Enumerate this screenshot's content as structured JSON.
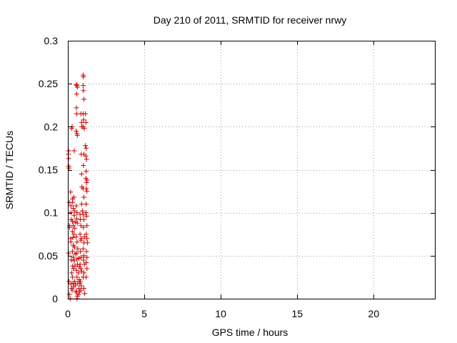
{
  "chart_data": {
    "type": "scatter",
    "title": "Day 210 of 2011, SRMTID for receiver nrwy",
    "xlabel": "GPS time / hours",
    "ylabel": "SRMTID / TECUs",
    "xlim": [
      0,
      24
    ],
    "ylim": [
      0,
      0.3
    ],
    "xticks": [
      0,
      5,
      10,
      15,
      20
    ],
    "xtick_labels": [
      "0",
      "5",
      "10",
      "15",
      "20"
    ],
    "yticks": [
      0,
      0.05,
      0.1,
      0.15,
      0.2,
      0.25,
      0.3
    ],
    "ytick_labels": [
      "0",
      "0.05",
      "0.1",
      "0.15",
      "0.2",
      "0.25",
      "0.3"
    ],
    "grid": true,
    "marker": "plus",
    "color": "#cc0000",
    "series": [
      {
        "name": "SRMTID",
        "points": [
          [
            0.03,
            0.168
          ],
          [
            0.05,
            0.172
          ],
          [
            0.05,
            0.163
          ],
          [
            0.06,
            0.154
          ],
          [
            0.08,
            0.152
          ],
          [
            0.1,
            0.112
          ],
          [
            0.1,
            0.085
          ],
          [
            0.12,
            0.083
          ],
          [
            0.05,
            0.053
          ],
          [
            0.08,
            0.02
          ],
          [
            0.1,
            0.005
          ],
          [
            0.15,
            0.0
          ],
          [
            0.18,
            0.124
          ],
          [
            0.2,
            0.108
          ],
          [
            0.2,
            0.1
          ],
          [
            0.22,
            0.092
          ],
          [
            0.18,
            0.07
          ],
          [
            0.2,
            0.066
          ],
          [
            0.22,
            0.045
          ],
          [
            0.25,
            0.03
          ],
          [
            0.2,
            0.017
          ],
          [
            0.25,
            0.012
          ],
          [
            0.28,
            0.01
          ],
          [
            0.25,
            0.198
          ],
          [
            0.28,
            0.2
          ],
          [
            0.3,
            0.116
          ],
          [
            0.32,
            0.112
          ],
          [
            0.35,
            0.105
          ],
          [
            0.3,
            0.09
          ],
          [
            0.35,
            0.085
          ],
          [
            0.3,
            0.078
          ],
          [
            0.33,
            0.071
          ],
          [
            0.35,
            0.062
          ],
          [
            0.3,
            0.055
          ],
          [
            0.35,
            0.048
          ],
          [
            0.32,
            0.038
          ],
          [
            0.36,
            0.035
          ],
          [
            0.3,
            0.025
          ],
          [
            0.35,
            0.018
          ],
          [
            0.38,
            0.014
          ],
          [
            0.42,
            0.172
          ],
          [
            0.4,
            0.118
          ],
          [
            0.45,
            0.102
          ],
          [
            0.42,
            0.097
          ],
          [
            0.48,
            0.089
          ],
          [
            0.45,
            0.082
          ],
          [
            0.4,
            0.075
          ],
          [
            0.44,
            0.06
          ],
          [
            0.48,
            0.052
          ],
          [
            0.42,
            0.044
          ],
          [
            0.46,
            0.038
          ],
          [
            0.45,
            0.02
          ],
          [
            0.5,
            0.016
          ],
          [
            0.52,
            0.008
          ],
          [
            0.55,
            0.249
          ],
          [
            0.6,
            0.248
          ],
          [
            0.62,
            0.246
          ],
          [
            0.58,
            0.238
          ],
          [
            0.56,
            0.222
          ],
          [
            0.58,
            0.215
          ],
          [
            0.55,
            0.195
          ],
          [
            0.6,
            0.192
          ],
          [
            0.62,
            0.19
          ],
          [
            0.55,
            0.108
          ],
          [
            0.6,
            0.1
          ],
          [
            0.58,
            0.093
          ],
          [
            0.62,
            0.088
          ],
          [
            0.55,
            0.072
          ],
          [
            0.6,
            0.066
          ],
          [
            0.65,
            0.058
          ],
          [
            0.58,
            0.053
          ],
          [
            0.6,
            0.046
          ],
          [
            0.63,
            0.04
          ],
          [
            0.56,
            0.033
          ],
          [
            0.6,
            0.025
          ],
          [
            0.65,
            0.018
          ],
          [
            0.58,
            0.008
          ],
          [
            0.62,
            0.003
          ],
          [
            0.6,
            0.0
          ],
          [
            0.7,
            0.005
          ],
          [
            0.72,
            0.047
          ],
          [
            0.75,
            0.037
          ],
          [
            0.7,
            0.03
          ],
          [
            0.75,
            0.022
          ],
          [
            0.78,
            0.018
          ],
          [
            0.72,
            0.012
          ],
          [
            0.76,
            0.008
          ],
          [
            0.8,
            0.098
          ],
          [
            0.82,
            0.092
          ],
          [
            0.85,
            0.085
          ],
          [
            0.8,
            0.075
          ],
          [
            0.85,
            0.068
          ],
          [
            0.88,
            0.07
          ],
          [
            0.82,
            0.055
          ],
          [
            0.86,
            0.048
          ],
          [
            0.8,
            0.04
          ],
          [
            0.85,
            0.035
          ],
          [
            0.9,
            0.032
          ],
          [
            0.82,
            0.02
          ],
          [
            0.88,
            0.015
          ],
          [
            0.85,
            0.01
          ],
          [
            0.85,
            0.215
          ],
          [
            0.9,
            0.205
          ],
          [
            0.92,
            0.2
          ],
          [
            0.88,
            0.168
          ],
          [
            0.9,
            0.145
          ],
          [
            0.92,
            0.13
          ],
          [
            0.9,
            0.11
          ],
          [
            0.95,
            0.102
          ],
          [
            1.0,
            0.26
          ],
          [
            1.02,
            0.258
          ],
          [
            1.0,
            0.248
          ],
          [
            1.02,
            0.242
          ],
          [
            1.05,
            0.232
          ],
          [
            1.0,
            0.215
          ],
          [
            1.03,
            0.208
          ],
          [
            1.0,
            0.2
          ],
          [
            1.08,
            0.198
          ],
          [
            1.05,
            0.168
          ],
          [
            1.02,
            0.155
          ],
          [
            1.0,
            0.128
          ],
          [
            1.05,
            0.118
          ],
          [
            1.0,
            0.098
          ],
          [
            1.05,
            0.092
          ],
          [
            1.02,
            0.083
          ],
          [
            1.08,
            0.072
          ],
          [
            1.05,
            0.065
          ],
          [
            1.0,
            0.058
          ],
          [
            1.05,
            0.05
          ],
          [
            1.02,
            0.045
          ],
          [
            1.08,
            0.04
          ],
          [
            1.05,
            0.03
          ],
          [
            1.0,
            0.025
          ],
          [
            1.05,
            0.012
          ],
          [
            1.1,
            0.006
          ],
          [
            1.15,
            0.215
          ],
          [
            1.18,
            0.205
          ],
          [
            1.15,
            0.178
          ],
          [
            1.2,
            0.175
          ],
          [
            1.18,
            0.166
          ],
          [
            1.22,
            0.162
          ],
          [
            1.2,
            0.148
          ],
          [
            1.18,
            0.14
          ],
          [
            1.25,
            0.138
          ],
          [
            1.22,
            0.135
          ],
          [
            1.2,
            0.128
          ],
          [
            1.25,
            0.125
          ],
          [
            1.2,
            0.11
          ],
          [
            1.18,
            0.1
          ],
          [
            1.22,
            0.096
          ],
          [
            1.25,
            0.085
          ],
          [
            1.2,
            0.075
          ],
          [
            1.25,
            0.07
          ],
          [
            1.28,
            0.065
          ],
          [
            1.22,
            0.055
          ],
          [
            1.25,
            0.048
          ],
          [
            1.2,
            0.042
          ],
          [
            1.25,
            0.035
          ],
          [
            1.2,
            0.025
          ]
        ]
      }
    ]
  }
}
